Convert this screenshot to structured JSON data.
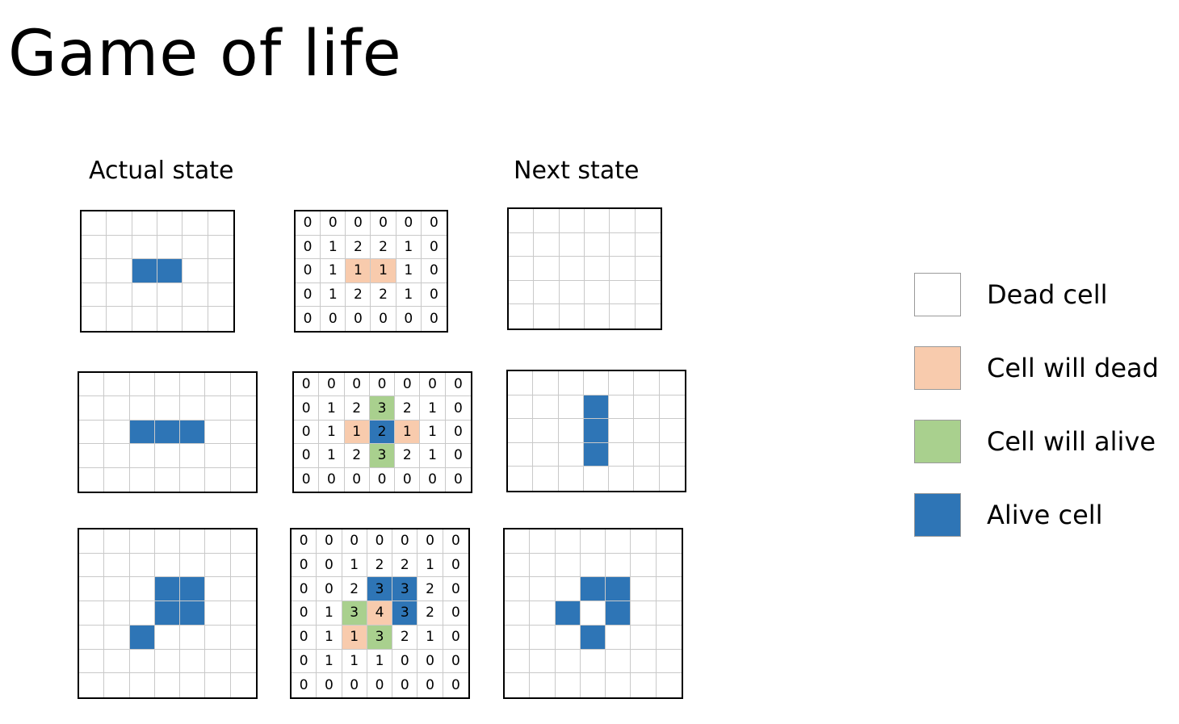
{
  "title": "Game of life",
  "headers": {
    "actual": "Actual state",
    "next": "Next state"
  },
  "colors": {
    "dead": "#ffffff",
    "will_dead": "#f8cbad",
    "will_alive": "#a9d08e",
    "alive": "#2e75b6"
  },
  "rows": [
    {
      "actual": {
        "cols": 6,
        "rows": 5,
        "alive": [
          [
            2,
            2
          ],
          [
            2,
            3
          ]
        ]
      },
      "counts": {
        "values": [
          [
            0,
            0,
            0,
            0,
            0,
            0
          ],
          [
            0,
            1,
            2,
            2,
            1,
            0
          ],
          [
            0,
            1,
            1,
            1,
            1,
            0
          ],
          [
            0,
            1,
            2,
            2,
            1,
            0
          ],
          [
            0,
            0,
            0,
            0,
            0,
            0
          ]
        ],
        "alive": [],
        "will_dead": [
          [
            2,
            2
          ],
          [
            2,
            3
          ]
        ],
        "will_alive": []
      },
      "next": {
        "cols": 6,
        "rows": 5,
        "alive": []
      }
    },
    {
      "actual": {
        "cols": 7,
        "rows": 5,
        "alive": [
          [
            2,
            2
          ],
          [
            2,
            3
          ],
          [
            2,
            4
          ]
        ]
      },
      "counts": {
        "values": [
          [
            0,
            0,
            0,
            0,
            0,
            0,
            0
          ],
          [
            0,
            1,
            2,
            3,
            2,
            1,
            0
          ],
          [
            0,
            1,
            1,
            2,
            1,
            1,
            0
          ],
          [
            0,
            1,
            2,
            3,
            2,
            1,
            0
          ],
          [
            0,
            0,
            0,
            0,
            0,
            0,
            0
          ]
        ],
        "alive": [
          [
            2,
            3
          ]
        ],
        "will_dead": [
          [
            2,
            2
          ],
          [
            2,
            4
          ]
        ],
        "will_alive": [
          [
            1,
            3
          ],
          [
            3,
            3
          ]
        ]
      },
      "next": {
        "cols": 7,
        "rows": 5,
        "alive": [
          [
            1,
            3
          ],
          [
            2,
            3
          ],
          [
            3,
            3
          ]
        ]
      }
    },
    {
      "actual": {
        "cols": 7,
        "rows": 7,
        "alive": [
          [
            2,
            3
          ],
          [
            2,
            4
          ],
          [
            3,
            3
          ],
          [
            3,
            4
          ],
          [
            4,
            2
          ]
        ]
      },
      "counts": {
        "values": [
          [
            0,
            0,
            0,
            0,
            0,
            0,
            0
          ],
          [
            0,
            0,
            1,
            2,
            2,
            1,
            0
          ],
          [
            0,
            0,
            2,
            3,
            3,
            2,
            0
          ],
          [
            0,
            1,
            3,
            4,
            3,
            2,
            0
          ],
          [
            0,
            1,
            1,
            3,
            2,
            1,
            0
          ],
          [
            0,
            1,
            1,
            1,
            0,
            0,
            0
          ],
          [
            0,
            0,
            0,
            0,
            0,
            0,
            0
          ]
        ],
        "alive": [
          [
            2,
            3
          ],
          [
            2,
            4
          ],
          [
            3,
            4
          ]
        ],
        "will_dead": [
          [
            3,
            3
          ],
          [
            4,
            2
          ]
        ],
        "will_alive": [
          [
            3,
            2
          ],
          [
            4,
            3
          ]
        ]
      },
      "next": {
        "cols": 7,
        "rows": 7,
        "alive": [
          [
            2,
            3
          ],
          [
            2,
            4
          ],
          [
            3,
            2
          ],
          [
            3,
            4
          ],
          [
            4,
            3
          ]
        ]
      }
    }
  ],
  "legend": [
    {
      "label": "Dead cell",
      "color_key": "dead"
    },
    {
      "label": "Cell will dead",
      "color_key": "will_dead"
    },
    {
      "label": "Cell will alive",
      "color_key": "will_alive"
    },
    {
      "label": "Alive cell",
      "color_key": "alive"
    }
  ]
}
